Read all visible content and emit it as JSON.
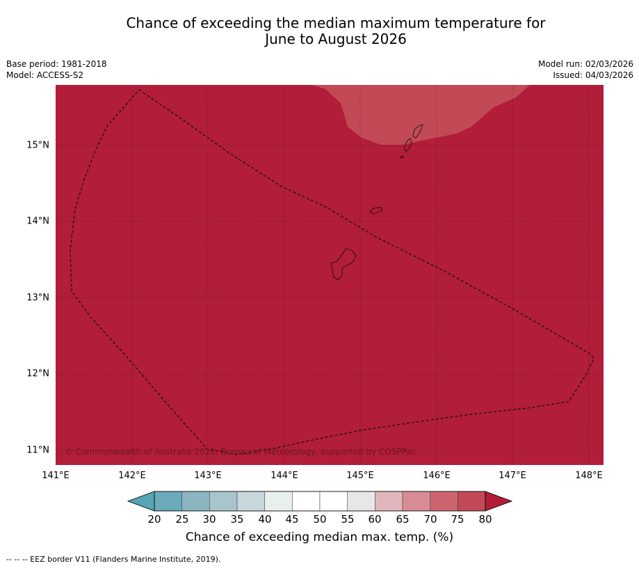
{
  "title": {
    "line1": "Chance of exceeding the median maximum temperature for",
    "line2": "June to August 2026"
  },
  "meta": {
    "base_period": "Base period: 1981-2018",
    "model": "Model: ACCESS-S2",
    "model_run": "Model run: 02/03/2026",
    "issued": "Issued: 04/03/2026"
  },
  "map": {
    "lon_labels": [
      "141°E",
      "142°E",
      "143°E",
      "144°E",
      "145°E",
      "146°E",
      "147°E",
      "148°E"
    ],
    "lat_labels": [
      "15°N",
      "14°N",
      "13°N",
      "12°N",
      "11°N"
    ],
    "copyright": "© Commonwealth of Australia 2026, Bureau of Meteorology, supported by COSPPac",
    "colors": {
      "main": "#b21d3a",
      "lighter": "#c24a57"
    }
  },
  "colorbar": {
    "ticks": [
      "20",
      "25",
      "30",
      "35",
      "40",
      "45",
      "50",
      "55",
      "60",
      "65",
      "70",
      "75",
      "80"
    ],
    "colors": [
      "#6aaabb",
      "#8ab5c1",
      "#a8c5cb",
      "#c8d7db",
      "#e8efef",
      "#ffffff",
      "#ffffff",
      "#e7e7e7",
      "#e0b6bc",
      "#d78c95",
      "#cc6470",
      "#c24a57"
    ],
    "under_color": "#56a4b5",
    "over_color": "#b21d3a",
    "label": "Chance of exceeding median max. temp. (%)"
  },
  "legend": {
    "text": "--  --  -- EEZ border V11 (Flanders Marine Institute, 2019)."
  }
}
